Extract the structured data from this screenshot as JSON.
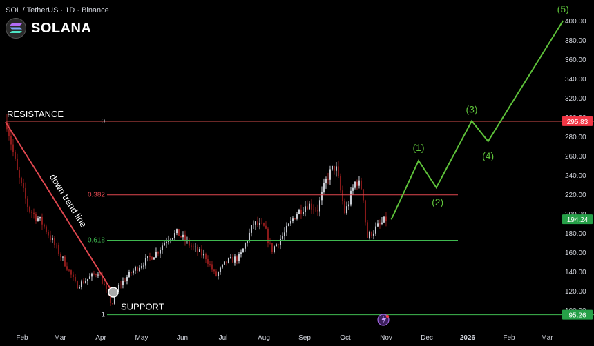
{
  "header": {
    "symbol_line": "SOL / TetherUS · 1D · Binance",
    "brand": "SOLANA"
  },
  "colors": {
    "background": "#000000",
    "resistance": "#e0474f",
    "support": "#3fb950",
    "wave": "#5ec23a",
    "up_candle": "#c9cdd4",
    "down_candle": "#8b1a1a",
    "price_tag_red": "#f23645",
    "price_tag_green": "#26a048"
  },
  "chart_data": {
    "type": "candlestick",
    "x_ticks": [
      "Feb",
      "Mar",
      "Apr",
      "May",
      "Jun",
      "Jul",
      "Aug",
      "Sep",
      "Oct",
      "Nov",
      "Dec",
      "2026",
      "Feb",
      "Mar"
    ],
    "y_ticks": [
      100,
      120,
      140,
      160,
      180,
      200,
      220,
      240,
      260,
      280,
      300,
      320,
      340,
      360,
      380,
      400
    ],
    "y_tick_labels": [
      "100.00",
      "120.00",
      "140.00",
      "160.00",
      "180.00",
      "200.00",
      "220.00",
      "240.00",
      "260.00",
      "280.00",
      "300.00",
      "320.00",
      "340.00",
      "360.00",
      "380.00",
      "400.00"
    ],
    "ylim": [
      92,
      405
    ],
    "price_path": [
      {
        "date": "2025-01-20",
        "price": 295
      },
      {
        "date": "2025-01-28",
        "price": 240
      },
      {
        "date": "2025-02-05",
        "price": 205
      },
      {
        "date": "2025-02-15",
        "price": 190
      },
      {
        "date": "2025-02-25",
        "price": 165
      },
      {
        "date": "2025-03-05",
        "price": 145
      },
      {
        "date": "2025-03-12",
        "price": 125
      },
      {
        "date": "2025-03-20",
        "price": 132
      },
      {
        "date": "2025-03-28",
        "price": 140
      },
      {
        "date": "2025-04-07",
        "price": 105
      },
      {
        "date": "2025-04-12",
        "price": 125
      },
      {
        "date": "2025-04-22",
        "price": 140
      },
      {
        "date": "2025-05-01",
        "price": 150
      },
      {
        "date": "2025-05-10",
        "price": 160
      },
      {
        "date": "2025-05-18",
        "price": 175
      },
      {
        "date": "2025-05-25",
        "price": 180
      },
      {
        "date": "2025-06-05",
        "price": 165
      },
      {
        "date": "2025-06-15",
        "price": 155
      },
      {
        "date": "2025-06-22",
        "price": 135
      },
      {
        "date": "2025-06-30",
        "price": 150
      },
      {
        "date": "2025-07-10",
        "price": 155
      },
      {
        "date": "2025-07-20",
        "price": 190
      },
      {
        "date": "2025-07-28",
        "price": 185
      },
      {
        "date": "2025-08-02",
        "price": 162
      },
      {
        "date": "2025-08-12",
        "price": 180
      },
      {
        "date": "2025-08-20",
        "price": 200
      },
      {
        "date": "2025-08-28",
        "price": 210
      },
      {
        "date": "2025-09-05",
        "price": 205
      },
      {
        "date": "2025-09-12",
        "price": 238
      },
      {
        "date": "2025-09-18",
        "price": 250
      },
      {
        "date": "2025-09-25",
        "price": 200
      },
      {
        "date": "2025-10-03",
        "price": 235
      },
      {
        "date": "2025-10-08",
        "price": 225
      },
      {
        "date": "2025-10-11",
        "price": 175
      },
      {
        "date": "2025-10-18",
        "price": 185
      },
      {
        "date": "2025-10-26",
        "price": 195
      }
    ],
    "fib_levels": [
      {
        "label": "0",
        "price": 295.83
      },
      {
        "label": "0.382",
        "price": 219.5
      },
      {
        "label": "0.618",
        "price": 172.5
      },
      {
        "label": "1",
        "price": 95.26
      }
    ],
    "resistance": {
      "label": "RESISTANCE",
      "price": 295.83
    },
    "support": {
      "label": "SUPPORT",
      "price": 95.26
    },
    "downtrend": {
      "label": "down trend line",
      "from": {
        "date": "2025-01-19",
        "price": 295
      },
      "to": {
        "date": "2025-04-07",
        "price": 120
      }
    },
    "wave_projection": [
      {
        "date": "2025-10-29",
        "price": 194,
        "label": ""
      },
      {
        "date": "2025-11-18",
        "price": 255,
        "label": "(1)"
      },
      {
        "date": "2025-12-01",
        "price": 227,
        "label": "(2)"
      },
      {
        "date": "2025-12-27",
        "price": 296,
        "label": "(3)"
      },
      {
        "date": "2026-01-08",
        "price": 275,
        "label": "(4)"
      },
      {
        "date": "2026-03-04",
        "price": 400,
        "label": "(5)"
      }
    ],
    "price_tags": [
      {
        "text": "295.83",
        "price": 295.83,
        "color": "#f23645"
      },
      {
        "text": "194.24",
        "price": 194.24,
        "color": "#26a048"
      },
      {
        "text": "95.26",
        "price": 95.26,
        "color": "#26a048"
      }
    ]
  }
}
